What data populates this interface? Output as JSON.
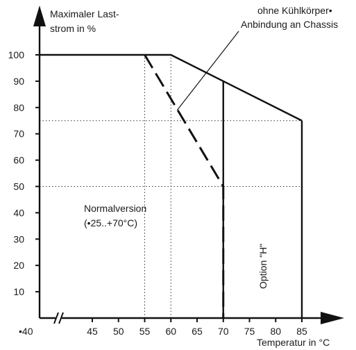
{
  "chart_data": {
    "type": "line",
    "ylabel": [
      "Maximaler Last-",
      "strom in %"
    ],
    "xlabel": "Temperatur in °C",
    "x_ticks": [
      {
        "label": "•40",
        "value": 40
      },
      {
        "label": "45",
        "value": 45
      },
      {
        "label": "50",
        "value": 50
      },
      {
        "label": "55",
        "value": 55
      },
      {
        "label": "60",
        "value": 60
      },
      {
        "label": "65",
        "value": 65
      },
      {
        "label": "70",
        "value": 70
      },
      {
        "label": "75",
        "value": 75
      },
      {
        "label": "80",
        "value": 80
      },
      {
        "label": "85",
        "value": 85
      }
    ],
    "y_ticks": [
      10,
      20,
      30,
      40,
      50,
      60,
      70,
      80,
      90,
      100
    ],
    "xlim": [
      40,
      88
    ],
    "ylim": [
      0,
      110
    ],
    "x_axis_break": true,
    "series": [
      {
        "style": "solid",
        "x": [
          40,
          60,
          85
        ],
        "y": [
          100,
          100,
          75
        ]
      },
      {
        "style": "dashed",
        "x": [
          55,
          70,
          70
        ],
        "y": [
          100,
          50,
          0
        ]
      }
    ],
    "vertical_lines": [
      {
        "style": "solid",
        "x": 70,
        "y_from": 0,
        "y_to": 90
      },
      {
        "style": "solid",
        "x": 85,
        "y_from": 0,
        "y_to": 75
      }
    ],
    "guides": {
      "vertical": [
        {
          "x": 55,
          "y_to": 100
        },
        {
          "x": 60,
          "y_to": 100
        }
      ],
      "horizontal": [
        {
          "y": 75,
          "x_to": 85
        },
        {
          "y": 50,
          "x_to": 85
        }
      ]
    },
    "annotations": [
      {
        "lines": [
          "ohne Kühlkörper•",
          "Anbindung an Chassis"
        ],
        "arrow_to": {
          "x": 61.2,
          "y": 79
        }
      },
      {
        "lines": [
          "Normalversion",
          "(•25..+70°C)"
        ]
      },
      {
        "lines": [
          "Option \"H\""
        ],
        "rotated": true
      }
    ]
  }
}
